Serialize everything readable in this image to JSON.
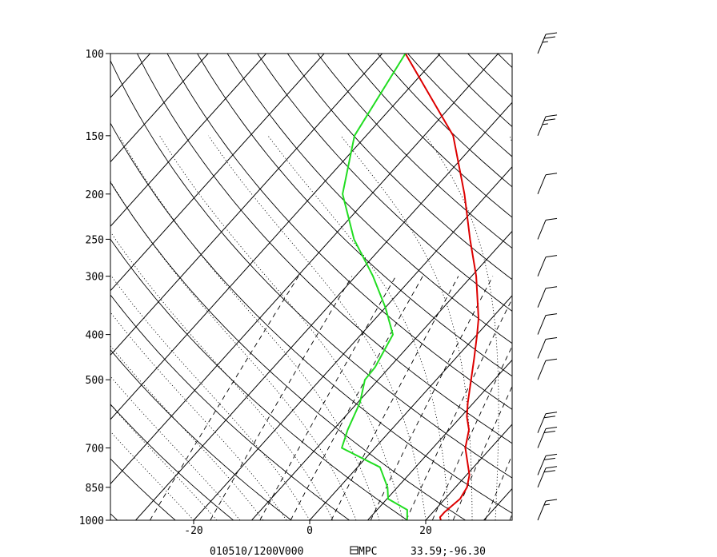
{
  "chart_data": {
    "type": "line",
    "subtype": "skew-t log-p sounding",
    "title": "",
    "footer": {
      "datetime": "010510/1200V000",
      "source": "MPC",
      "location": "33.59;-96.30"
    },
    "y_axis": {
      "scale": "log",
      "unit": "pressure",
      "tick_values": [
        100,
        150,
        200,
        250,
        300,
        400,
        500,
        700,
        850,
        1000
      ],
      "tick_labels": [
        "100",
        "150",
        "200",
        "250",
        "300",
        "400",
        "500",
        "700",
        "850",
        "1000"
      ]
    },
    "x_axis": {
      "unit": "temperature",
      "tick_values": [
        -20,
        0,
        20
      ],
      "tick_labels": [
        "-20",
        "0",
        "20"
      ]
    },
    "grid": {
      "isotherms": true,
      "dry_adiabats": true,
      "moist_adiabats": true,
      "mixing_ratio_lines": true
    },
    "series": [
      {
        "color": "#dd0000",
        "points": [
          {
            "p": 1000,
            "t": 22.6
          },
          {
            "p": 985,
            "t": 22.0
          },
          {
            "p": 960,
            "t": 22.0
          },
          {
            "p": 900,
            "t": 22.6
          },
          {
            "p": 850,
            "t": 22.0
          },
          {
            "p": 800,
            "t": 20.5
          },
          {
            "p": 700,
            "t": 15.6
          },
          {
            "p": 640,
            "t": 13.4
          },
          {
            "p": 600,
            "t": 11.0
          },
          {
            "p": 560,
            "t": 9.0
          },
          {
            "p": 500,
            "t": 6.0
          },
          {
            "p": 450,
            "t": 3.2
          },
          {
            "p": 400,
            "t": 0.0
          },
          {
            "p": 370,
            "t": -2.2
          },
          {
            "p": 300,
            "t": -9.2
          },
          {
            "p": 250,
            "t": -16.0
          },
          {
            "p": 200,
            "t": -24.0
          },
          {
            "p": 150,
            "t": -35.0
          },
          {
            "p": 100,
            "t": -56.0
          }
        ]
      },
      {
        "color": "#22dd22",
        "points": [
          {
            "p": 1000,
            "t": 16.8
          },
          {
            "p": 950,
            "t": 15.2
          },
          {
            "p": 900,
            "t": 10.2
          },
          {
            "p": 850,
            "t": 8.3
          },
          {
            "p": 770,
            "t": 3.9
          },
          {
            "p": 700,
            "t": -5.7
          },
          {
            "p": 640,
            "t": -7.5
          },
          {
            "p": 560,
            "t": -9.6
          },
          {
            "p": 500,
            "t": -12.3
          },
          {
            "p": 470,
            "t": -12.5
          },
          {
            "p": 400,
            "t": -14.5
          },
          {
            "p": 350,
            "t": -20.0
          },
          {
            "p": 300,
            "t": -27.0
          },
          {
            "p": 250,
            "t": -36.0
          },
          {
            "p": 200,
            "t": -45.0
          },
          {
            "p": 150,
            "t": -52.0
          },
          {
            "p": 100,
            "t": -56.0
          }
        ]
      }
    ],
    "wind_barbs": [
      {
        "p": 1000,
        "speed_kt": 15
      },
      {
        "p": 850,
        "speed_kt": 20
      },
      {
        "p": 800,
        "speed_kt": 20
      },
      {
        "p": 700,
        "speed_kt": 20
      },
      {
        "p": 650,
        "speed_kt": 20
      },
      {
        "p": 500,
        "speed_kt": 10
      },
      {
        "p": 450,
        "speed_kt": 10
      },
      {
        "p": 400,
        "speed_kt": 10
      },
      {
        "p": 350,
        "speed_kt": 10
      },
      {
        "p": 300,
        "speed_kt": 10
      },
      {
        "p": 250,
        "speed_kt": 10
      },
      {
        "p": 200,
        "speed_kt": 10
      },
      {
        "p": 150,
        "speed_kt": 25
      },
      {
        "p": 100,
        "speed_kt": 25
      }
    ]
  }
}
